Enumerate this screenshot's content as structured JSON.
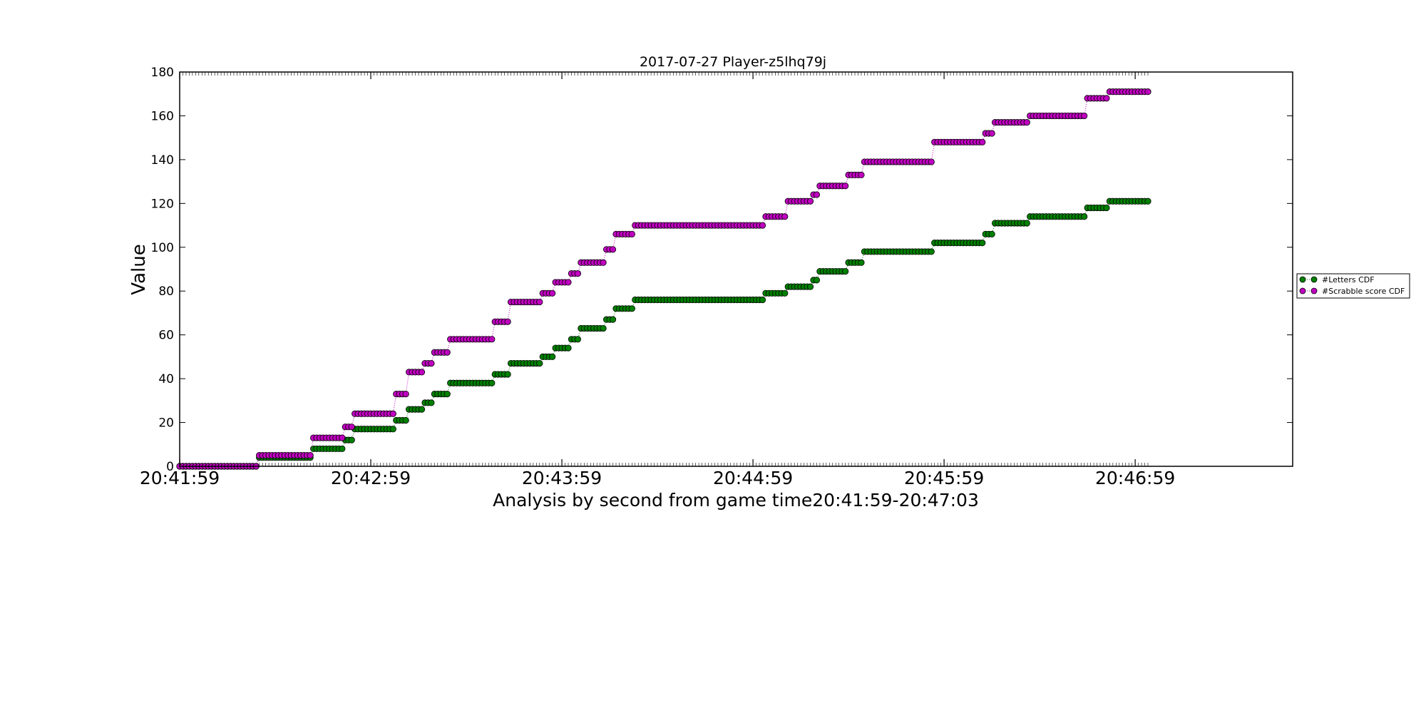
{
  "chart_data": {
    "type": "scatter",
    "title": "2017-07-27 Player-z5lhq79j",
    "xlabel": "Analysis by second from game time20:41:59-20:47:03",
    "ylabel": "Value",
    "x_start": "20:41:59",
    "x_end": "20:47:03",
    "x_tick_labels": [
      "20:41:59",
      "20:42:59",
      "20:43:59",
      "20:44:59",
      "20:45:59",
      "20:46:59"
    ],
    "y_tick_labels": [
      "0",
      "20",
      "40",
      "60",
      "80",
      "100",
      "120",
      "140",
      "160",
      "180"
    ],
    "ylim": [
      0,
      180
    ],
    "grid": false,
    "legend_position": "right",
    "series": [
      {
        "name": "#Letters CDF",
        "color": "#008000",
        "steps": [
          {
            "from": "20:41:59",
            "to": "20:42:23",
            "value": 0
          },
          {
            "from": "20:42:24",
            "to": "20:42:40",
            "value": 4
          },
          {
            "from": "20:42:41",
            "to": "20:42:50",
            "value": 8
          },
          {
            "from": "20:42:51",
            "to": "20:42:53",
            "value": 12
          },
          {
            "from": "20:42:54",
            "to": "20:43:06",
            "value": 17
          },
          {
            "from": "20:43:07",
            "to": "20:43:10",
            "value": 21
          },
          {
            "from": "20:43:11",
            "to": "20:43:15",
            "value": 26
          },
          {
            "from": "20:43:16",
            "to": "20:43:18",
            "value": 29
          },
          {
            "from": "20:43:19",
            "to": "20:43:23",
            "value": 33
          },
          {
            "from": "20:43:24",
            "to": "20:43:37",
            "value": 38
          },
          {
            "from": "20:43:38",
            "to": "20:43:42",
            "value": 42
          },
          {
            "from": "20:43:43",
            "to": "20:43:52",
            "value": 47
          },
          {
            "from": "20:43:53",
            "to": "20:43:56",
            "value": 50
          },
          {
            "from": "20:43:57",
            "to": "20:44:01",
            "value": 54
          },
          {
            "from": "20:44:02",
            "to": "20:44:04",
            "value": 58
          },
          {
            "from": "20:44:05",
            "to": "20:44:12",
            "value": 63
          },
          {
            "from": "20:44:13",
            "to": "20:44:15",
            "value": 67
          },
          {
            "from": "20:44:16",
            "to": "20:44:21",
            "value": 72
          },
          {
            "from": "20:44:22",
            "to": "20:45:02",
            "value": 76
          },
          {
            "from": "20:45:03",
            "to": "20:45:09",
            "value": 79
          },
          {
            "from": "20:45:10",
            "to": "20:45:17",
            "value": 82
          },
          {
            "from": "20:45:18",
            "to": "20:45:19",
            "value": 85
          },
          {
            "from": "20:45:20",
            "to": "20:45:28",
            "value": 89
          },
          {
            "from": "20:45:29",
            "to": "20:45:33",
            "value": 93
          },
          {
            "from": "20:45:34",
            "to": "20:45:55",
            "value": 98
          },
          {
            "from": "20:45:56",
            "to": "20:46:11",
            "value": 102
          },
          {
            "from": "20:46:12",
            "to": "20:46:14",
            "value": 106
          },
          {
            "from": "20:46:15",
            "to": "20:46:25",
            "value": 111
          },
          {
            "from": "20:46:26",
            "to": "20:46:43",
            "value": 114
          },
          {
            "from": "20:46:44",
            "to": "20:46:50",
            "value": 118
          },
          {
            "from": "20:46:51",
            "to": "20:47:03",
            "value": 121
          }
        ]
      },
      {
        "name": "#Scrabble score CDF",
        "color": "#BF00BF",
        "steps": [
          {
            "from": "20:41:59",
            "to": "20:42:23",
            "value": 0
          },
          {
            "from": "20:42:24",
            "to": "20:42:40",
            "value": 5
          },
          {
            "from": "20:42:41",
            "to": "20:42:50",
            "value": 13
          },
          {
            "from": "20:42:51",
            "to": "20:42:53",
            "value": 18
          },
          {
            "from": "20:42:54",
            "to": "20:43:06",
            "value": 24
          },
          {
            "from": "20:43:07",
            "to": "20:43:10",
            "value": 33
          },
          {
            "from": "20:43:11",
            "to": "20:43:15",
            "value": 43
          },
          {
            "from": "20:43:16",
            "to": "20:43:18",
            "value": 47
          },
          {
            "from": "20:43:19",
            "to": "20:43:23",
            "value": 52
          },
          {
            "from": "20:43:24",
            "to": "20:43:37",
            "value": 58
          },
          {
            "from": "20:43:38",
            "to": "20:43:42",
            "value": 66
          },
          {
            "from": "20:43:43",
            "to": "20:43:52",
            "value": 75
          },
          {
            "from": "20:43:53",
            "to": "20:43:56",
            "value": 79
          },
          {
            "from": "20:43:57",
            "to": "20:44:01",
            "value": 84
          },
          {
            "from": "20:44:02",
            "to": "20:44:04",
            "value": 88
          },
          {
            "from": "20:44:05",
            "to": "20:44:12",
            "value": 93
          },
          {
            "from": "20:44:13",
            "to": "20:44:15",
            "value": 99
          },
          {
            "from": "20:44:16",
            "to": "20:44:21",
            "value": 106
          },
          {
            "from": "20:44:22",
            "to": "20:45:02",
            "value": 110
          },
          {
            "from": "20:45:03",
            "to": "20:45:09",
            "value": 114
          },
          {
            "from": "20:45:10",
            "to": "20:45:17",
            "value": 121
          },
          {
            "from": "20:45:18",
            "to": "20:45:19",
            "value": 124
          },
          {
            "from": "20:45:20",
            "to": "20:45:28",
            "value": 128
          },
          {
            "from": "20:45:29",
            "to": "20:45:33",
            "value": 133
          },
          {
            "from": "20:45:34",
            "to": "20:45:55",
            "value": 139
          },
          {
            "from": "20:45:56",
            "to": "20:46:11",
            "value": 148
          },
          {
            "from": "20:46:12",
            "to": "20:46:14",
            "value": 152
          },
          {
            "from": "20:46:15",
            "to": "20:46:25",
            "value": 157
          },
          {
            "from": "20:46:26",
            "to": "20:46:43",
            "value": 160
          },
          {
            "from": "20:46:44",
            "to": "20:46:50",
            "value": 168
          },
          {
            "from": "20:46:51",
            "to": "20:47:03",
            "value": 171
          }
        ]
      }
    ]
  }
}
